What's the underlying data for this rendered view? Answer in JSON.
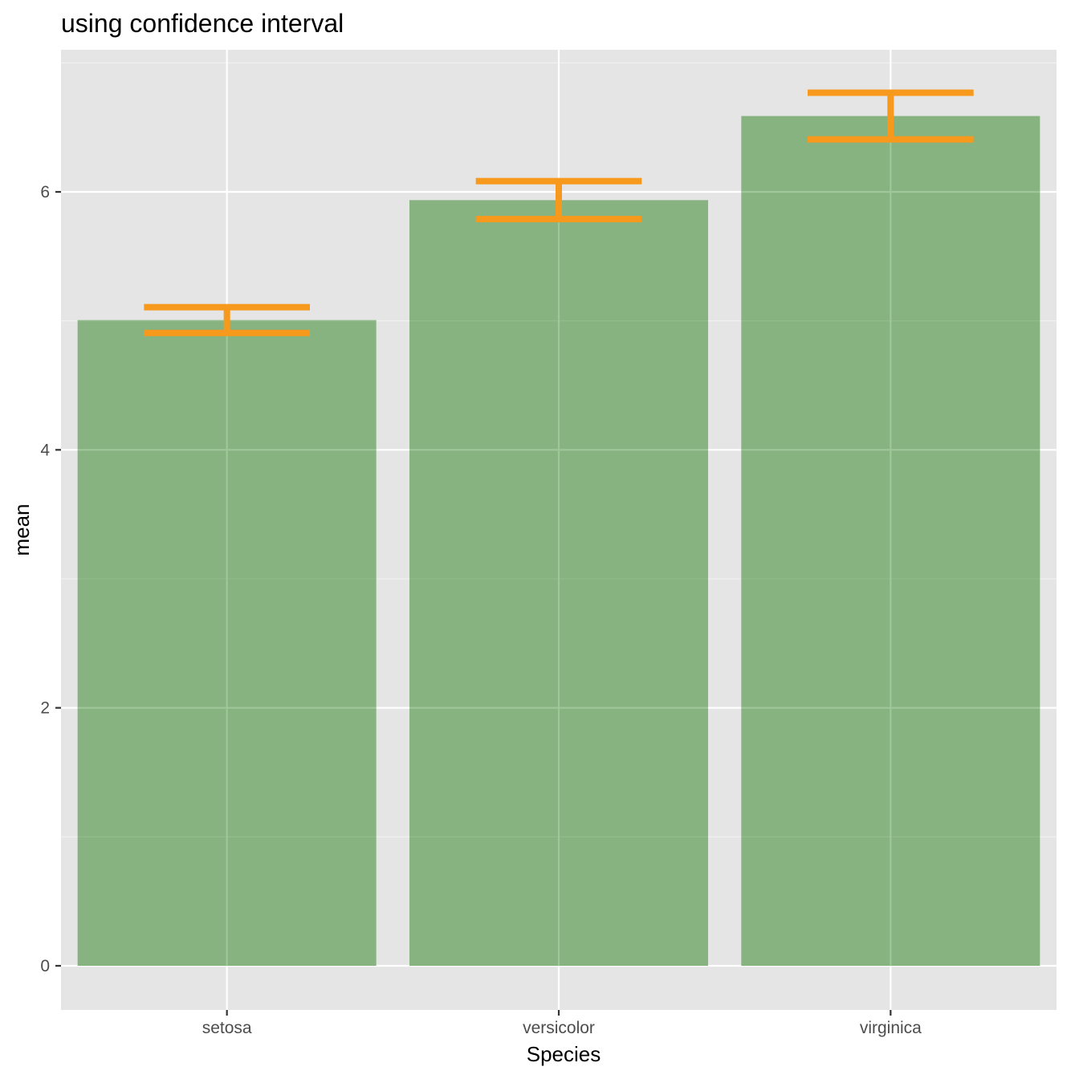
{
  "chart_data": {
    "type": "bar",
    "title": "using confidence interval",
    "xlabel": "Species",
    "ylabel": "mean",
    "categories": [
      "setosa",
      "versicolor",
      "virginica"
    ],
    "values": [
      5.006,
      5.936,
      6.588
    ],
    "error_bars": {
      "type": "confidence interval",
      "lower": [
        4.906,
        5.789,
        6.407
      ],
      "upper": [
        5.106,
        6.083,
        6.769
      ]
    },
    "ylim": [
      -0.33,
      7.1
    ],
    "yticks": [
      0,
      2,
      4,
      6
    ],
    "ytick_labels": [
      "0",
      "2",
      "4",
      "6"
    ],
    "grid": true,
    "legend": "none",
    "colors": {
      "bar_fill": "#86b380",
      "error_bar": "#f7991c",
      "panel_background": "#e5e5e5",
      "grid_major": "#ffffff",
      "grid_minor": "#f2f2f2"
    }
  }
}
